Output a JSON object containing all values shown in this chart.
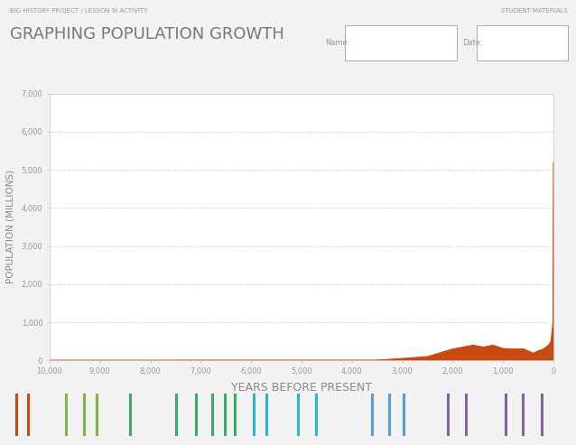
{
  "title_small": "BIG HISTORY PROJECT / LESSON 9I ACTIVITY",
  "title_large": "GRAPHING POPULATION GROWTH",
  "student_label": "STUDENT MATERIALS",
  "name_label": "Name:",
  "date_label": "Date:",
  "xlabel": "YEARS BEFORE PRESENT",
  "ylabel": "POPULATION (MILLIONS)",
  "xlim": [
    10000,
    0
  ],
  "ylim": [
    0,
    7000
  ],
  "yticks": [
    0,
    1000,
    2000,
    3000,
    4000,
    5000,
    6000,
    7000
  ],
  "xticks": [
    10000,
    9000,
    8000,
    7000,
    6000,
    5000,
    4000,
    3000,
    2000,
    1000,
    0
  ],
  "grid_color": "#c0c0c0",
  "fill_color": "#c94a10",
  "line_color": "#c94a10",
  "bg_color": "#f2f2f2",
  "plot_bg": "#ffffff",
  "header_bg": "#e8e8e8",
  "population_data_x": [
    10000,
    9000,
    8000,
    7000,
    6000,
    5500,
    5000,
    4500,
    4000,
    3500,
    3000,
    2500,
    2000,
    1800,
    1600,
    1400,
    1200,
    1000,
    800,
    600,
    400,
    300,
    200,
    100,
    50,
    10,
    0
  ],
  "population_data_y": [
    5,
    5,
    5,
    7,
    7,
    7,
    7,
    7,
    7,
    7,
    50,
    100,
    300,
    350,
    400,
    350,
    400,
    310,
    300,
    300,
    190,
    254,
    300,
    400,
    500,
    1000,
    5200
  ],
  "timeline_ticks": [
    [
      0.028,
      "#c94a10"
    ],
    [
      0.048,
      "#c94a10"
    ],
    [
      0.115,
      "#7ab648"
    ],
    [
      0.145,
      "#7ab648"
    ],
    [
      0.168,
      "#7ab648"
    ],
    [
      0.225,
      "#3aaa6b"
    ],
    [
      0.305,
      "#3aaa6b"
    ],
    [
      0.34,
      "#3aaa6b"
    ],
    [
      0.368,
      "#3aaa6b"
    ],
    [
      0.39,
      "#3aaa6b"
    ],
    [
      0.408,
      "#3aaa6b"
    ],
    [
      0.44,
      "#29b8c9"
    ],
    [
      0.462,
      "#29b8c9"
    ],
    [
      0.518,
      "#29b8c9"
    ],
    [
      0.548,
      "#29b8c9"
    ],
    [
      0.645,
      "#5b9bd5"
    ],
    [
      0.675,
      "#5b9bd5"
    ],
    [
      0.7,
      "#5b9bd5"
    ],
    [
      0.778,
      "#8064a2"
    ],
    [
      0.808,
      "#8064a2"
    ],
    [
      0.878,
      "#8064a2"
    ],
    [
      0.908,
      "#8064a2"
    ],
    [
      0.94,
      "#8064a2"
    ]
  ]
}
